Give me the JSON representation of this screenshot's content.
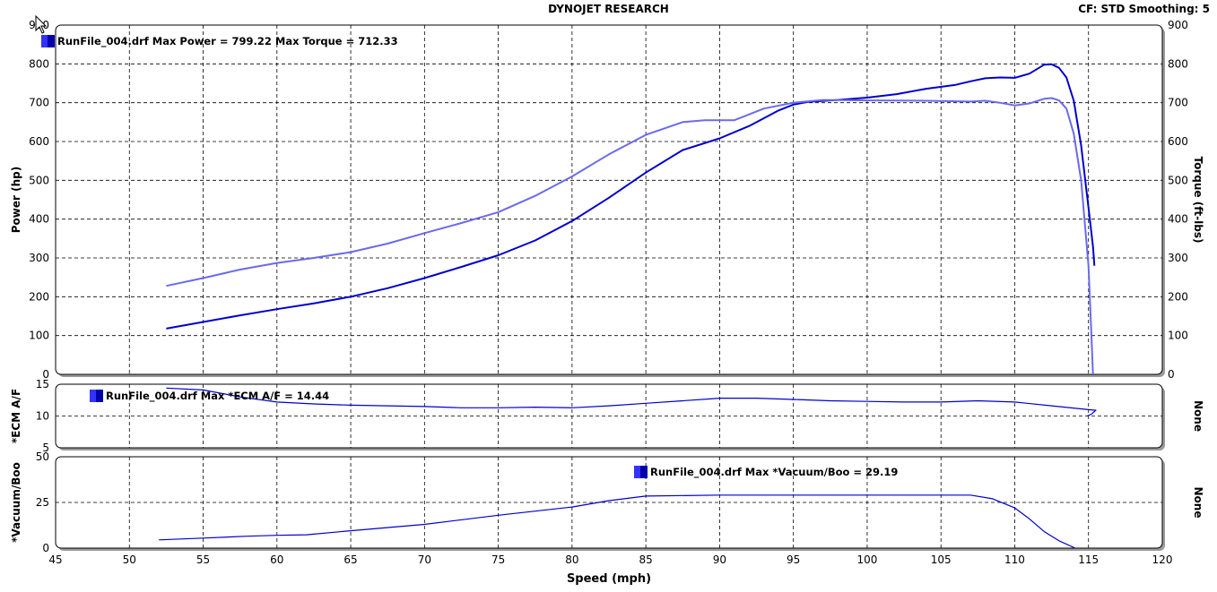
{
  "header": {
    "title": "DYNOJET RESEARCH",
    "cf_info": "CF: STD  Smoothing: 5"
  },
  "chart_data": [
    {
      "type": "line",
      "panel": "power-torque",
      "xlabel": "Speed (mph)",
      "ylabel_left": "Power (hp)",
      "ylabel_right": "Torque (ft-lbs)",
      "xlim": [
        45,
        120
      ],
      "x_ticks": [
        45,
        50,
        55,
        60,
        65,
        70,
        75,
        80,
        85,
        90,
        95,
        100,
        105,
        110,
        115,
        120
      ],
      "ylim": [
        0,
        900
      ],
      "y_ticks": [
        0,
        100,
        200,
        300,
        400,
        500,
        600,
        700,
        800,
        900
      ],
      "y_ticks_right": [
        0,
        100,
        200,
        300,
        400,
        500,
        600,
        700,
        800,
        900
      ],
      "grid": true,
      "legend": "RunFile_004.drf Max Power = 799.22 Max Torque = 712.33",
      "legend_position": "top-left",
      "series": [
        {
          "color": "#0000cc",
          "x": [
            52.5,
            55,
            57.5,
            60,
            62.5,
            65,
            67.5,
            70,
            72.5,
            75,
            77.5,
            80,
            82.5,
            85,
            87.5,
            90,
            92,
            94,
            95,
            96,
            98,
            100,
            102,
            104,
            106,
            107,
            108,
            109,
            110,
            111,
            112,
            112.5,
            113,
            113.5,
            114,
            114.5,
            115,
            115.3,
            115.4
          ],
          "values": [
            118,
            135,
            152,
            168,
            183,
            200,
            222,
            248,
            277,
            307,
            345,
            395,
            455,
            520,
            578,
            608,
            640,
            680,
            695,
            702,
            707,
            713,
            722,
            736,
            746,
            755,
            763,
            765,
            764,
            775,
            798,
            799,
            790,
            765,
            705,
            590,
            430,
            330,
            280
          ]
        },
        {
          "color": "#6a6aee",
          "x": [
            52.5,
            55,
            57.5,
            60,
            62.5,
            65,
            67.5,
            70,
            72.5,
            75,
            77.5,
            80,
            82.5,
            85,
            87.5,
            89,
            91,
            93,
            95,
            97,
            100,
            104,
            107,
            108,
            109,
            110,
            111,
            112,
            112.5,
            113,
            113.5,
            114,
            114.5,
            115,
            115.2,
            115.3
          ],
          "values": [
            228,
            248,
            270,
            287,
            300,
            315,
            337,
            364,
            390,
            418,
            460,
            510,
            567,
            617,
            650,
            655,
            655,
            685,
            700,
            707,
            706,
            705,
            703,
            705,
            700,
            693,
            698,
            710,
            712,
            706,
            685,
            620,
            500,
            280,
            100,
            0
          ]
        }
      ]
    },
    {
      "type": "line",
      "panel": "ecm-af",
      "ylabel": "*ECM A/F",
      "ylabel_right": "None",
      "xlim": [
        45,
        120
      ],
      "ylim": [
        5,
        15
      ],
      "y_ticks": [
        5,
        10,
        15
      ],
      "grid": true,
      "legend": "RunFile_004.drf Max *ECM A/F = 14.44",
      "legend_position": "top-left",
      "series": [
        {
          "color": "#0000cc",
          "x": [
            52.5,
            55,
            57.5,
            60,
            62.5,
            65,
            67.5,
            70,
            72.5,
            75,
            77.5,
            80,
            82.5,
            85,
            87.5,
            90,
            92.5,
            95,
            97.5,
            100,
            102.5,
            105,
            107.5,
            110,
            112.5,
            115,
            115.5,
            115.2,
            114.9
          ],
          "values": [
            14.4,
            14.1,
            13.0,
            12.2,
            11.9,
            11.7,
            11.6,
            11.5,
            11.3,
            11.3,
            11.4,
            11.3,
            11.6,
            12.0,
            12.4,
            12.8,
            12.8,
            12.6,
            12.4,
            12.3,
            12.2,
            12.2,
            12.4,
            12.2,
            11.6,
            11.0,
            10.9,
            10.3,
            10.0
          ]
        }
      ]
    },
    {
      "type": "line",
      "panel": "vacuum-boost",
      "ylabel": "*Vacuum/Boo",
      "ylabel_right": "None",
      "xlim": [
        45,
        120
      ],
      "ylim": [
        0,
        50
      ],
      "y_ticks": [
        0,
        25,
        50
      ],
      "grid": true,
      "legend": "RunFile_004.drf Max *Vacuum/Boo = 29.19",
      "legend_position": "top-center",
      "series": [
        {
          "color": "#0000cc",
          "x": [
            52,
            55,
            58,
            60,
            62,
            65,
            70,
            75,
            80,
            82.5,
            85,
            90,
            95,
            100,
            105,
            107,
            108.5,
            110,
            111,
            112,
            113,
            114.1
          ],
          "values": [
            4.5,
            5.5,
            6.5,
            7,
            7.3,
            9.5,
            13,
            18,
            22.5,
            26,
            28.5,
            29,
            29,
            29,
            29,
            29,
            27,
            22,
            16,
            9,
            4,
            0
          ]
        }
      ]
    }
  ]
}
